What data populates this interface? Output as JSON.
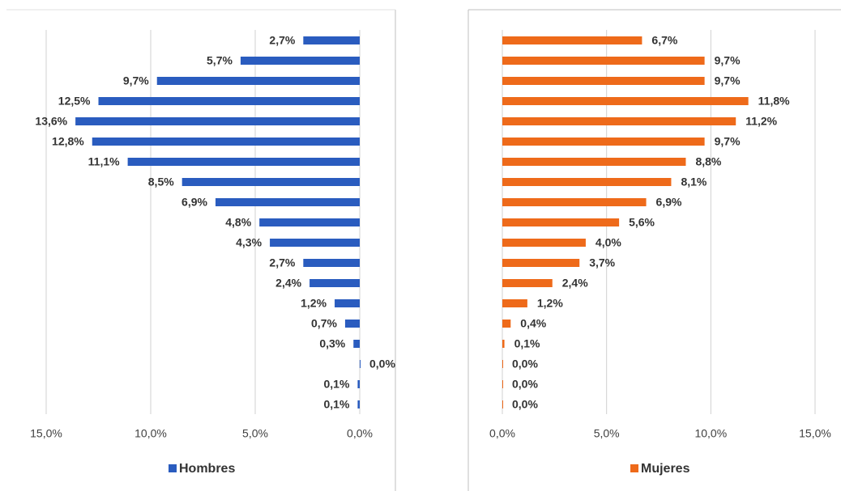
{
  "chart_data": [
    {
      "type": "bar",
      "orientation": "horizontal",
      "series": [
        {
          "name": "Hombres",
          "color": "#2a5cbf",
          "values": [
            2.7,
            5.7,
            9.7,
            12.5,
            13.6,
            12.8,
            11.1,
            8.5,
            6.9,
            4.8,
            4.3,
            2.7,
            2.4,
            1.2,
            0.7,
            0.3,
            0.0,
            0.1,
            0.1
          ],
          "value_labels": [
            "2,7%",
            "5,7%",
            "9,7%",
            "12,5%",
            "13,6%",
            "12,8%",
            "11,1%",
            "8,5%",
            "6,9%",
            "4,8%",
            "4,3%",
            "2,7%",
            "2,4%",
            "1,2%",
            "0,7%",
            "0,3%",
            "0,0%",
            "0,1%",
            "0,1%"
          ]
        }
      ],
      "xlim": [
        15,
        0
      ],
      "xticks": [
        {
          "value": 15,
          "label": "15,0%"
        },
        {
          "value": 10,
          "label": "10,0%"
        },
        {
          "value": 5,
          "label": "5,0%"
        },
        {
          "value": 0,
          "label": "0,0%"
        }
      ],
      "grid": true,
      "legend": "bottom"
    },
    {
      "type": "bar",
      "orientation": "horizontal",
      "series": [
        {
          "name": "Mujeres",
          "color": "#ee6a1a",
          "values": [
            6.7,
            9.7,
            9.7,
            11.8,
            11.2,
            9.7,
            8.8,
            8.1,
            6.9,
            5.6,
            4.0,
            3.7,
            2.4,
            1.2,
            0.4,
            0.1,
            0.0,
            0.0,
            0.0
          ],
          "value_labels": [
            "6,7%",
            "9,7%",
            "9,7%",
            "11,8%",
            "11,2%",
            "9,7%",
            "8,8%",
            "8,1%",
            "6,9%",
            "5,6%",
            "4,0%",
            "3,7%",
            "2,4%",
            "1,2%",
            "0,4%",
            "0,1%",
            "0,0%",
            "0,0%",
            "0,0%"
          ]
        }
      ],
      "xlim": [
        0,
        15
      ],
      "xticks": [
        {
          "value": 0,
          "label": "0,0%"
        },
        {
          "value": 5,
          "label": "5,0%"
        },
        {
          "value": 10,
          "label": "10,0%"
        },
        {
          "value": 15,
          "label": "15,0%"
        }
      ],
      "grid": true,
      "legend": "bottom"
    }
  ]
}
